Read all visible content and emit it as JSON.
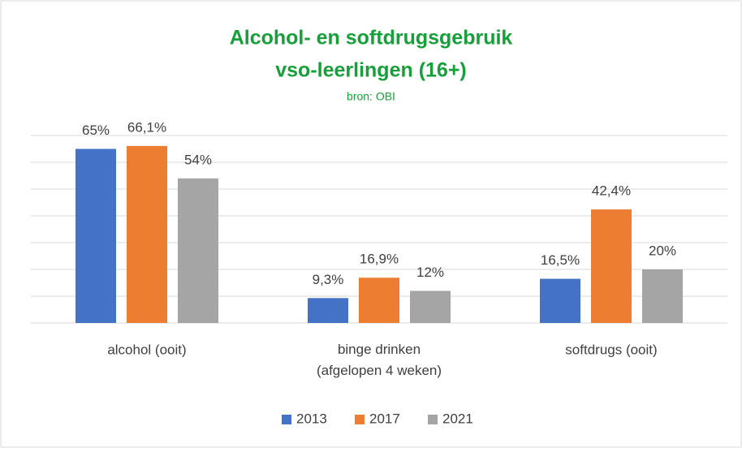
{
  "chart_data": {
    "type": "bar",
    "title": "Alcohol- en softdrugsgebruik",
    "title_line2": "vso-leerlingen (16+)",
    "subtitle": "bron: OBI",
    "categories": [
      "alcohol (ooit)",
      "binge drinken\n(afgelopen 4 weken)",
      "softdrugs (ooit)"
    ],
    "series": [
      {
        "name": "2013",
        "color": "#4472c4",
        "values": [
          65,
          9.3,
          16.5
        ],
        "value_labels": [
          "65%",
          "9,3%",
          "16,5%"
        ]
      },
      {
        "name": "2017",
        "color": "#ed7d31",
        "values": [
          66.1,
          16.9,
          42.4
        ],
        "value_labels": [
          "66,1%",
          "16,9%",
          "42,4%"
        ]
      },
      {
        "name": "2021",
        "color": "#a5a5a5",
        "values": [
          54,
          12,
          20
        ],
        "value_labels": [
          "54%",
          "12%",
          "20%"
        ]
      }
    ],
    "ylim": [
      0,
      70
    ],
    "yticks": [
      0,
      10,
      20,
      30,
      40,
      50,
      60,
      70
    ],
    "grid": true,
    "legend": "bottom"
  }
}
